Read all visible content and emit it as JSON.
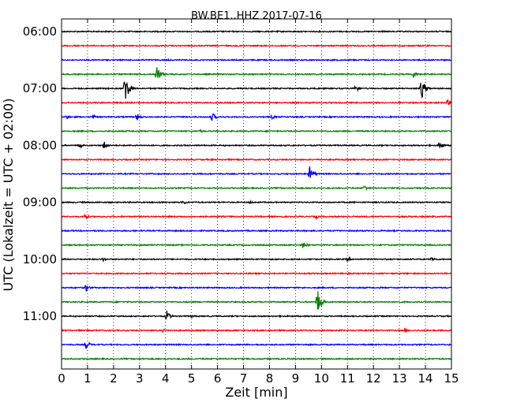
{
  "chart_data": {
    "type": "line",
    "title": "BW.BE1..HHZ 2017-07-16",
    "xlabel": "Zeit  [min]",
    "ylabel": "UTC (Lokalzeit = UTC + 02:00)",
    "xlim": [
      0,
      15
    ],
    "x_ticks": [
      "0",
      "1",
      "2",
      "3",
      "4",
      "5",
      "6",
      "7",
      "8",
      "9",
      "10",
      "11",
      "12",
      "13",
      "14",
      "15"
    ],
    "y_tick_labels": [
      "06:00",
      "07:00",
      "08:00",
      "09:00",
      "10:00",
      "11:00"
    ],
    "grid": "vertical dotted at each minute",
    "trace_colors": [
      "#000000",
      "#ff0000",
      "#0000ff",
      "#008000"
    ],
    "series": [
      {
        "start": "06:00",
        "color": "#000000",
        "events": []
      },
      {
        "start": "06:15",
        "color": "#ff0000",
        "events": []
      },
      {
        "start": "06:30",
        "color": "#0000ff",
        "events": []
      },
      {
        "start": "06:45",
        "color": "#008000",
        "events": [
          {
            "t": 3.65,
            "amp": 12
          },
          {
            "t": 13.55,
            "amp": 5
          }
        ]
      },
      {
        "start": "07:00",
        "color": "#000000",
        "events": [
          {
            "t": 2.45,
            "amp": 22
          },
          {
            "t": 11.3,
            "amp": 6
          },
          {
            "t": 13.85,
            "amp": 16
          }
        ]
      },
      {
        "start": "07:15",
        "color": "#ff0000",
        "events": [
          {
            "t": 14.85,
            "amp": 4
          }
        ]
      },
      {
        "start": "07:30",
        "color": "#0000ff",
        "events": [
          {
            "t": 0.2,
            "amp": 3
          },
          {
            "t": 1.2,
            "amp": 3
          },
          {
            "t": 2.9,
            "amp": 5
          },
          {
            "t": 5.8,
            "amp": 6
          },
          {
            "t": 8.1,
            "amp": 3
          }
        ]
      },
      {
        "start": "07:45",
        "color": "#008000",
        "events": [
          {
            "t": 5.35,
            "amp": 2
          }
        ]
      },
      {
        "start": "08:00",
        "color": "#000000",
        "events": [
          {
            "t": 0.7,
            "amp": 4
          },
          {
            "t": 1.65,
            "amp": 6
          },
          {
            "t": 14.55,
            "amp": 6
          }
        ]
      },
      {
        "start": "08:15",
        "color": "#ff0000",
        "events": []
      },
      {
        "start": "08:30",
        "color": "#0000ff",
        "events": [
          {
            "t": 9.55,
            "amp": 10
          }
        ]
      },
      {
        "start": "08:45",
        "color": "#008000",
        "events": [
          {
            "t": 11.65,
            "amp": 4
          }
        ]
      },
      {
        "start": "09:00",
        "color": "#000000",
        "events": [
          {
            "t": 4.7,
            "amp": 3
          },
          {
            "t": 7.25,
            "amp": 2
          }
        ]
      },
      {
        "start": "09:15",
        "color": "#ff0000",
        "events": [
          {
            "t": 0.9,
            "amp": 4
          },
          {
            "t": 9.8,
            "amp": 3
          }
        ]
      },
      {
        "start": "09:30",
        "color": "#0000ff",
        "events": []
      },
      {
        "start": "09:45",
        "color": "#008000",
        "events": [
          {
            "t": 9.3,
            "amp": 5
          }
        ]
      },
      {
        "start": "10:00",
        "color": "#000000",
        "events": [
          {
            "t": 1.6,
            "amp": 3
          },
          {
            "t": 11.0,
            "amp": 3
          },
          {
            "t": 14.25,
            "amp": 4
          }
        ]
      },
      {
        "start": "10:15",
        "color": "#ff0000",
        "events": []
      },
      {
        "start": "10:30",
        "color": "#0000ff",
        "events": [
          {
            "t": 0.95,
            "amp": 5
          }
        ]
      },
      {
        "start": "10:45",
        "color": "#008000",
        "events": [
          {
            "t": 9.85,
            "amp": 18
          }
        ]
      },
      {
        "start": "11:00",
        "color": "#000000",
        "events": [
          {
            "t": 4.05,
            "amp": 7
          },
          {
            "t": 5.0,
            "amp": 2
          }
        ]
      },
      {
        "start": "11:15",
        "color": "#ff0000",
        "events": [
          {
            "t": 3.9,
            "amp": 3
          },
          {
            "t": 13.2,
            "amp": 3
          }
        ]
      },
      {
        "start": "11:30",
        "color": "#0000ff",
        "events": [
          {
            "t": 0.95,
            "amp": 6
          }
        ]
      },
      {
        "start": "11:45",
        "color": "#008000",
        "events": []
      }
    ]
  }
}
